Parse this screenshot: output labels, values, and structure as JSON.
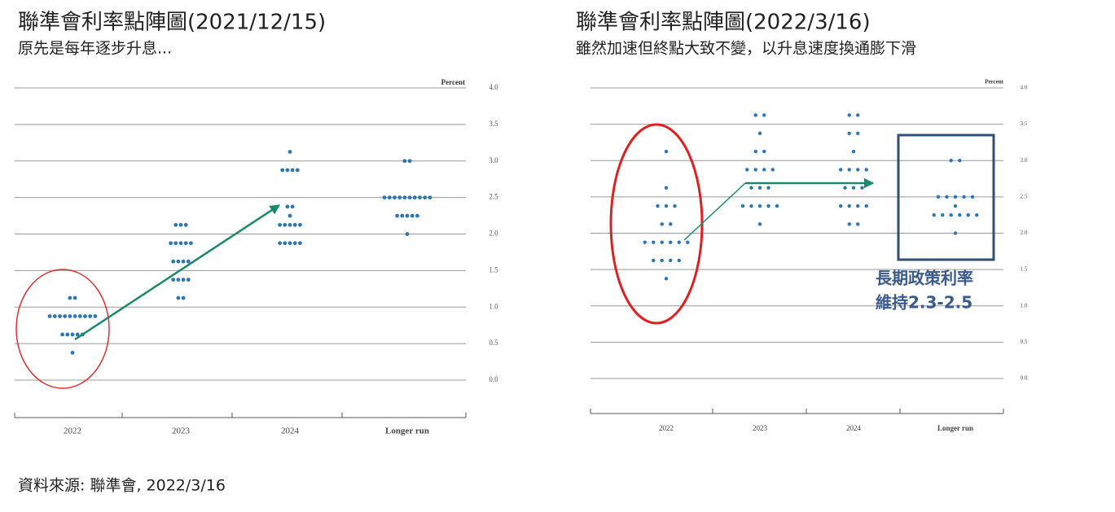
{
  "chart_data": [
    {
      "type": "dot",
      "title": "聯準會利率點陣圖(2021/12/15)",
      "subtitle": "原先是每年逐步升息...",
      "y_label": "Percent",
      "categories": [
        "2022",
        "2023",
        "2024",
        "Longer run"
      ],
      "values": [
        [
          0.375,
          0.625,
          0.625,
          0.625,
          0.625,
          0.625,
          0.875,
          0.875,
          0.875,
          0.875,
          0.875,
          0.875,
          0.875,
          0.875,
          0.875,
          0.875,
          1.125,
          1.125
        ],
        [
          1.125,
          1.125,
          1.375,
          1.375,
          1.375,
          1.375,
          1.625,
          1.625,
          1.625,
          1.625,
          1.875,
          1.875,
          1.875,
          1.875,
          1.875,
          2.125,
          2.125,
          2.125
        ],
        [
          1.875,
          1.875,
          1.875,
          1.875,
          1.875,
          2.125,
          2.125,
          2.125,
          2.125,
          2.125,
          2.25,
          2.375,
          2.375,
          2.875,
          2.875,
          2.875,
          2.875,
          3.125
        ],
        [
          2.0,
          2.25,
          2.25,
          2.25,
          2.25,
          2.25,
          2.5,
          2.5,
          2.5,
          2.5,
          2.5,
          2.5,
          2.5,
          2.5,
          2.5,
          2.5,
          3.0,
          3.0
        ]
      ],
      "color": "#2e75b6",
      "ylim": [
        0,
        4
      ],
      "yticks": [
        {
          "value": 0,
          "label": "0.0"
        },
        {
          "value": 0.5,
          "label": "0.5"
        },
        {
          "value": 1,
          "label": "1.0"
        },
        {
          "value": 1.5,
          "label": "1.5"
        },
        {
          "value": 2,
          "label": "2.0"
        },
        {
          "value": 2.5,
          "label": "2.5"
        },
        {
          "value": 3,
          "label": "3.0"
        },
        {
          "value": 3.5,
          "label": "3.5"
        },
        {
          "value": 4,
          "label": "4.0"
        }
      ],
      "grid": true
    },
    {
      "type": "dot",
      "title": "聯準會利率點陣圖(2022/3/16)",
      "subtitle": "雖然加速但終點大致不變，以升息速度換通膨下滑",
      "y_label": "Percent",
      "categories": [
        "2022",
        "2023",
        "2024",
        "Longer run"
      ],
      "values": [
        [
          1.375,
          1.625,
          1.625,
          1.625,
          1.625,
          1.875,
          1.875,
          1.875,
          1.875,
          1.875,
          1.875,
          2.125,
          2.125,
          2.375,
          2.375,
          2.375,
          2.625,
          3.125
        ],
        [
          2.125,
          2.375,
          2.375,
          2.375,
          2.375,
          2.375,
          2.625,
          2.625,
          2.625,
          2.875,
          2.875,
          2.875,
          2.875,
          3.125,
          3.125,
          3.375,
          3.625,
          3.625
        ],
        [
          2.125,
          2.125,
          2.375,
          2.375,
          2.375,
          2.375,
          2.625,
          2.625,
          2.625,
          2.875,
          2.875,
          2.875,
          2.875,
          3.125,
          3.375,
          3.375,
          3.625,
          3.625
        ],
        [
          2.0,
          2.25,
          2.25,
          2.25,
          2.25,
          2.25,
          2.25,
          2.375,
          2.5,
          2.5,
          2.5,
          2.5,
          2.5,
          3.0,
          3.0
        ]
      ],
      "color": "#2e75b6",
      "ylim": [
        0,
        4
      ],
      "yticks": [
        {
          "value": 0,
          "label": "0.0"
        },
        {
          "value": 0.5,
          "label": "0.5"
        },
        {
          "value": 1,
          "label": "1.0"
        },
        {
          "value": 1.5,
          "label": "1.5"
        },
        {
          "value": 2,
          "label": "2.0"
        },
        {
          "value": 2.5,
          "label": "2.5"
        },
        {
          "value": 3,
          "label": "3.0"
        },
        {
          "value": 3.5,
          "label": "3.5"
        },
        {
          "value": 4,
          "label": "4.0"
        }
      ],
      "grid": true,
      "annotation": [
        "長期政策利率",
        "維持2.3-2.5"
      ]
    }
  ],
  "source": "資料來源: 聯準會, 2022/3/16"
}
